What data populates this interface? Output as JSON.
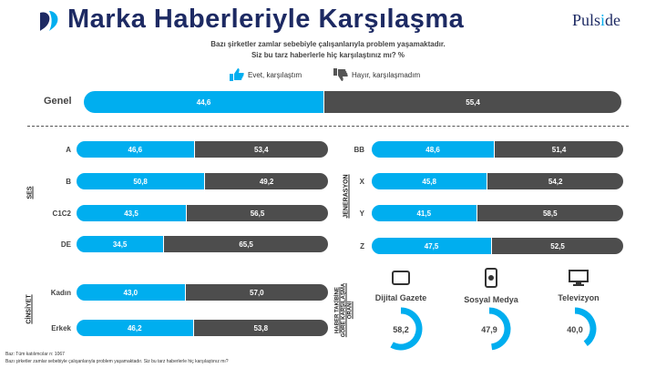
{
  "header": {
    "title": "Marka Haberleriyle Karşılaşma",
    "logo": "Pulside"
  },
  "question": {
    "line1": "Bazı şirketler zamlar sebebiyle çalışanlarıyla problem yaşamaktadır.",
    "line2": "Siz bu tarz haberlerle hiç karşılaştınız mı? %"
  },
  "legend": {
    "yes": "Evet, karşılaştım",
    "no": "Hayır, karşılaşmadım"
  },
  "colors": {
    "yes": "#00aeef",
    "no": "#4d4d4d",
    "title": "#1d2a63"
  },
  "chart_data": {
    "type": "bar",
    "orientation": "horizontal-stacked-100",
    "series_names": [
      "Evet, karşılaştım",
      "Hayır, karşılaşmadım"
    ],
    "genel": {
      "label": "Genel",
      "yes": "44,6",
      "no": "55,4"
    },
    "groups": {
      "ses": {
        "title": "SES",
        "rows": [
          {
            "label": "A",
            "yes": "46,6",
            "no": "53,4"
          },
          {
            "label": "B",
            "yes": "50,8",
            "no": "49,2"
          },
          {
            "label": "C1C2",
            "yes": "43,5",
            "no": "56,5"
          },
          {
            "label": "DE",
            "yes": "34,5",
            "no": "65,5"
          }
        ]
      },
      "jenerasyon": {
        "title": "JENERASYON",
        "rows": [
          {
            "label": "BB",
            "yes": "48,6",
            "no": "51,4"
          },
          {
            "label": "X",
            "yes": "45,8",
            "no": "54,2"
          },
          {
            "label": "Y",
            "yes": "41,5",
            "no": "58,5"
          },
          {
            "label": "Z",
            "yes": "47,5",
            "no": "52,5"
          }
        ]
      },
      "cinsiyet": {
        "title": "CİNSİYET",
        "rows": [
          {
            "label": "Kadın",
            "yes": "43,0",
            "no": "57,0"
          },
          {
            "label": "Erkek",
            "yes": "46,2",
            "no": "53,8"
          }
        ]
      }
    },
    "media_title_line1": "HABER TAKİBİNE",
    "media_title_line2": "GÖRE KARŞILAŞMA",
    "media_title_line3": "ORANI",
    "media": [
      {
        "label": "Dijital Gazete",
        "value": "58,2",
        "icon": "tablet-icon"
      },
      {
        "label": "Sosyal Medya",
        "value": "47,9",
        "icon": "phone-icon"
      },
      {
        "label": "Televizyon",
        "value": "40,0",
        "icon": "tv-icon"
      }
    ]
  },
  "footnote": {
    "line1": "Baz: Tüm katılımcılar n: 1067",
    "line2": "Bazı şirketler zamlar sebebiyle çalışanlarıyla problem yaşamaktadır. Siz bu tarz haberlerle hiç karşılaştınız mı?"
  }
}
